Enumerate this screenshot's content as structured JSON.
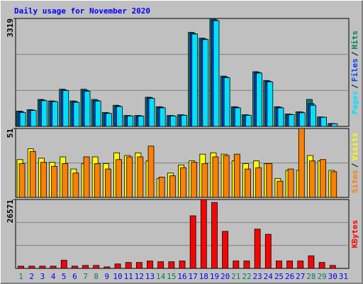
{
  "chart_data": [
    {
      "type": "bar",
      "title": "Daily usage for November 2020",
      "legend_separator": "/",
      "ylim": [
        0,
        3319
      ],
      "yticks": [
        3319
      ],
      "series": [
        {
          "name": "Hits",
          "color": "#00805c",
          "values": [
            470,
            515,
            829,
            784,
            1143,
            784,
            1143,
            829,
            426,
            650,
            336,
            336,
            897,
            605,
            336,
            358,
            2893,
            2713,
            3319,
            1547,
            605,
            358,
            1682,
            1413,
            605,
            381,
            448,
            829,
            291,
            90,
            null
          ]
        },
        {
          "name": "Files",
          "color": "#0040ff",
          "values": [
            450,
            500,
            810,
            770,
            1120,
            760,
            1110,
            800,
            410,
            630,
            330,
            325,
            880,
            590,
            330,
            350,
            2860,
            2690,
            3280,
            1520,
            590,
            350,
            1660,
            1390,
            590,
            370,
            440,
            700,
            285,
            85,
            null
          ]
        },
        {
          "name": "Pages",
          "color": "#00e0ff",
          "values": [
            426,
            490,
            790,
            760,
            1100,
            740,
            1080,
            780,
            400,
            610,
            320,
            315,
            860,
            570,
            320,
            340,
            2840,
            2670,
            3250,
            1500,
            570,
            340,
            1640,
            1370,
            570,
            360,
            420,
            650,
            280,
            80,
            null
          ]
        }
      ]
    },
    {
      "type": "bar",
      "legend_separator": "/",
      "ylim": [
        0,
        51
      ],
      "yticks": [
        51
      ],
      "series": [
        {
          "name": "Visits",
          "color": "#ffff00",
          "values": [
            28,
            36,
            29,
            26,
            30,
            21,
            25,
            30,
            25,
            33,
            31,
            33,
            27,
            14,
            18,
            24,
            27,
            32,
            33,
            32,
            27,
            25,
            27,
            25,
            14,
            20,
            20,
            31,
            27,
            20,
            null
          ]
        },
        {
          "name": "Sites",
          "color": "#ff8000",
          "values": [
            25,
            34,
            26,
            23,
            25,
            18,
            30,
            25,
            21,
            28,
            30,
            30,
            38,
            15,
            16,
            22,
            26,
            25,
            30,
            31,
            32,
            21,
            22,
            25,
            12,
            21,
            51,
            27,
            28,
            19,
            null
          ]
        }
      ]
    },
    {
      "type": "bar",
      "ylim": [
        0,
        26571
      ],
      "yticks": [
        26571
      ],
      "categories": [
        "1",
        "2",
        "3",
        "4",
        "5",
        "6",
        "7",
        "8",
        "9",
        "10",
        "11",
        "12",
        "13",
        "14",
        "15",
        "16",
        "17",
        "18",
        "19",
        "20",
        "21",
        "22",
        "23",
        "24",
        "25",
        "26",
        "27",
        "28",
        "29",
        "30",
        "31"
      ],
      "category_colors": [
        "#00805c",
        "#0000ff",
        "#0000ff",
        "#0000ff",
        "#0000ff",
        "#0000ff",
        "#00805c",
        "#00805c",
        "#0000ff",
        "#0000ff",
        "#0000ff",
        "#0000ff",
        "#0000ff",
        "#00805c",
        "#00805c",
        "#0000ff",
        "#0000ff",
        "#0000ff",
        "#0000ff",
        "#0000ff",
        "#00805c",
        "#00805c",
        "#0000ff",
        "#0000ff",
        "#0000ff",
        "#0000ff",
        "#0000ff",
        "#00805c",
        "#00805c",
        "#0000ff",
        "#0000ff"
      ],
      "series": [
        {
          "name": "KBytes",
          "color": "#ff0000",
          "values": [
            857,
            857,
            857,
            857,
            3143,
            857,
            1143,
            1143,
            571,
            1714,
            2286,
            2286,
            2857,
            2571,
            2571,
            2857,
            20286,
            26571,
            25429,
            14286,
            2857,
            2857,
            15143,
            13143,
            2857,
            2857,
            2857,
            4857,
            2286,
            1143,
            null
          ]
        }
      ]
    }
  ]
}
